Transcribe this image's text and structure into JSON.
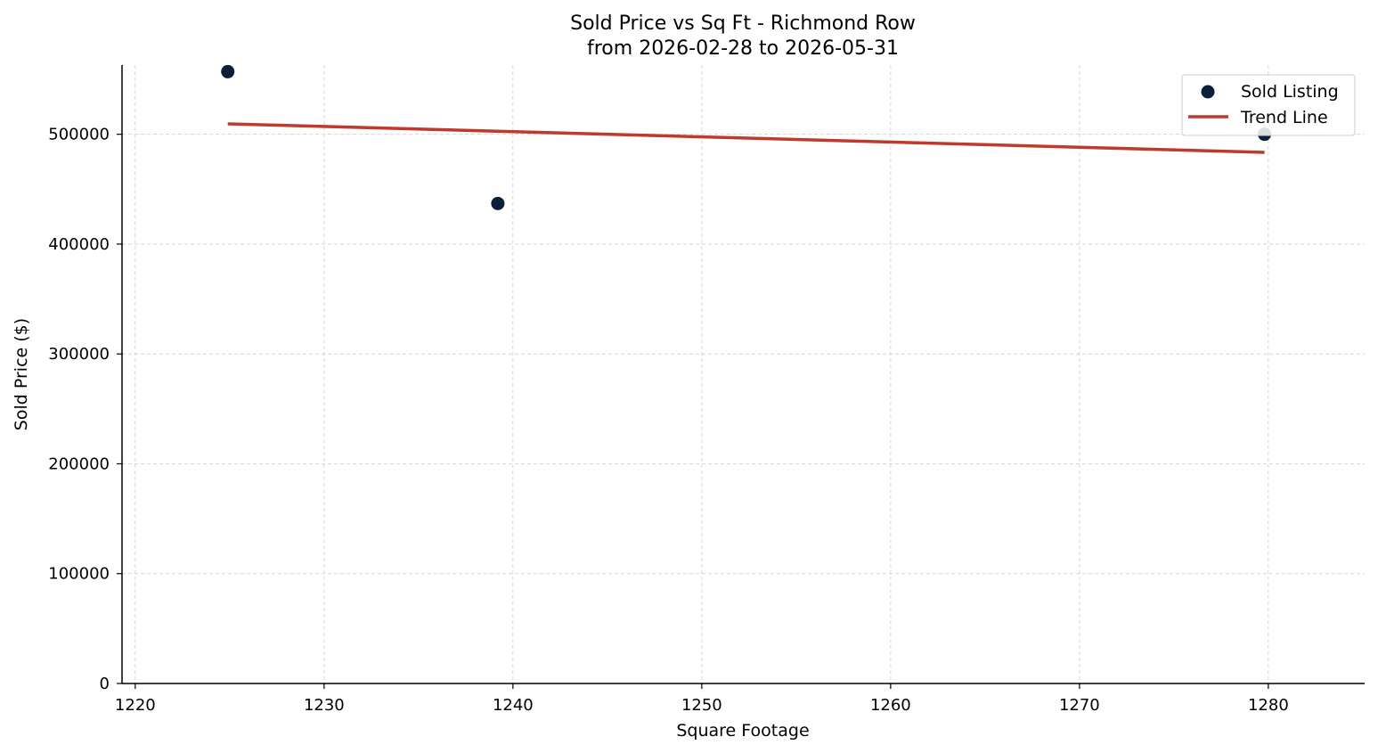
{
  "chart_data": {
    "type": "scatter",
    "title": "Sold Price vs Sq Ft - Richmond Row",
    "subtitle": "from 2026-02-28 to 2026-05-31",
    "xlabel": "Square Footage",
    "ylabel": "Sold Price ($)",
    "xlim": [
      1219.3,
      1285.1
    ],
    "ylim": [
      0,
      563000
    ],
    "x_ticks": [
      1220,
      1230,
      1240,
      1250,
      1260,
      1270,
      1280
    ],
    "y_ticks": [
      0,
      100000,
      200000,
      300000,
      400000,
      500000
    ],
    "grid": true,
    "legend_position": "top-right",
    "series": [
      {
        "name": "Sold Listing",
        "kind": "scatter",
        "color": "#0b1f3a",
        "points": [
          {
            "x": 1224.9,
            "y": 557000
          },
          {
            "x": 1239.2,
            "y": 437000
          },
          {
            "x": 1279.8,
            "y": 500000
          }
        ]
      },
      {
        "name": "Trend Line",
        "kind": "line",
        "color": "#c0392b",
        "points": [
          {
            "x": 1224.9,
            "y": 509500
          },
          {
            "x": 1279.8,
            "y": 483500
          }
        ]
      }
    ]
  }
}
